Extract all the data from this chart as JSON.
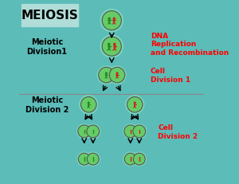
{
  "bg_color": "#5bbcb8",
  "title_box_color": "#b0ddd8",
  "title_text": "MEIOSIS",
  "title_fontsize": 11,
  "cell_mid_color": "#66cc66",
  "arrow_color": "black",
  "divider_color": "#888888",
  "labels": {
    "meiotic1": "Meiotic\nDivision1",
    "dna": "DNA\nReplication\nand Recombination",
    "cell_div1": "Cell\nDivision 1",
    "meiotic2": "Meiotic\nDivision 2",
    "cell_div2": "Cell\nDivision 2"
  }
}
